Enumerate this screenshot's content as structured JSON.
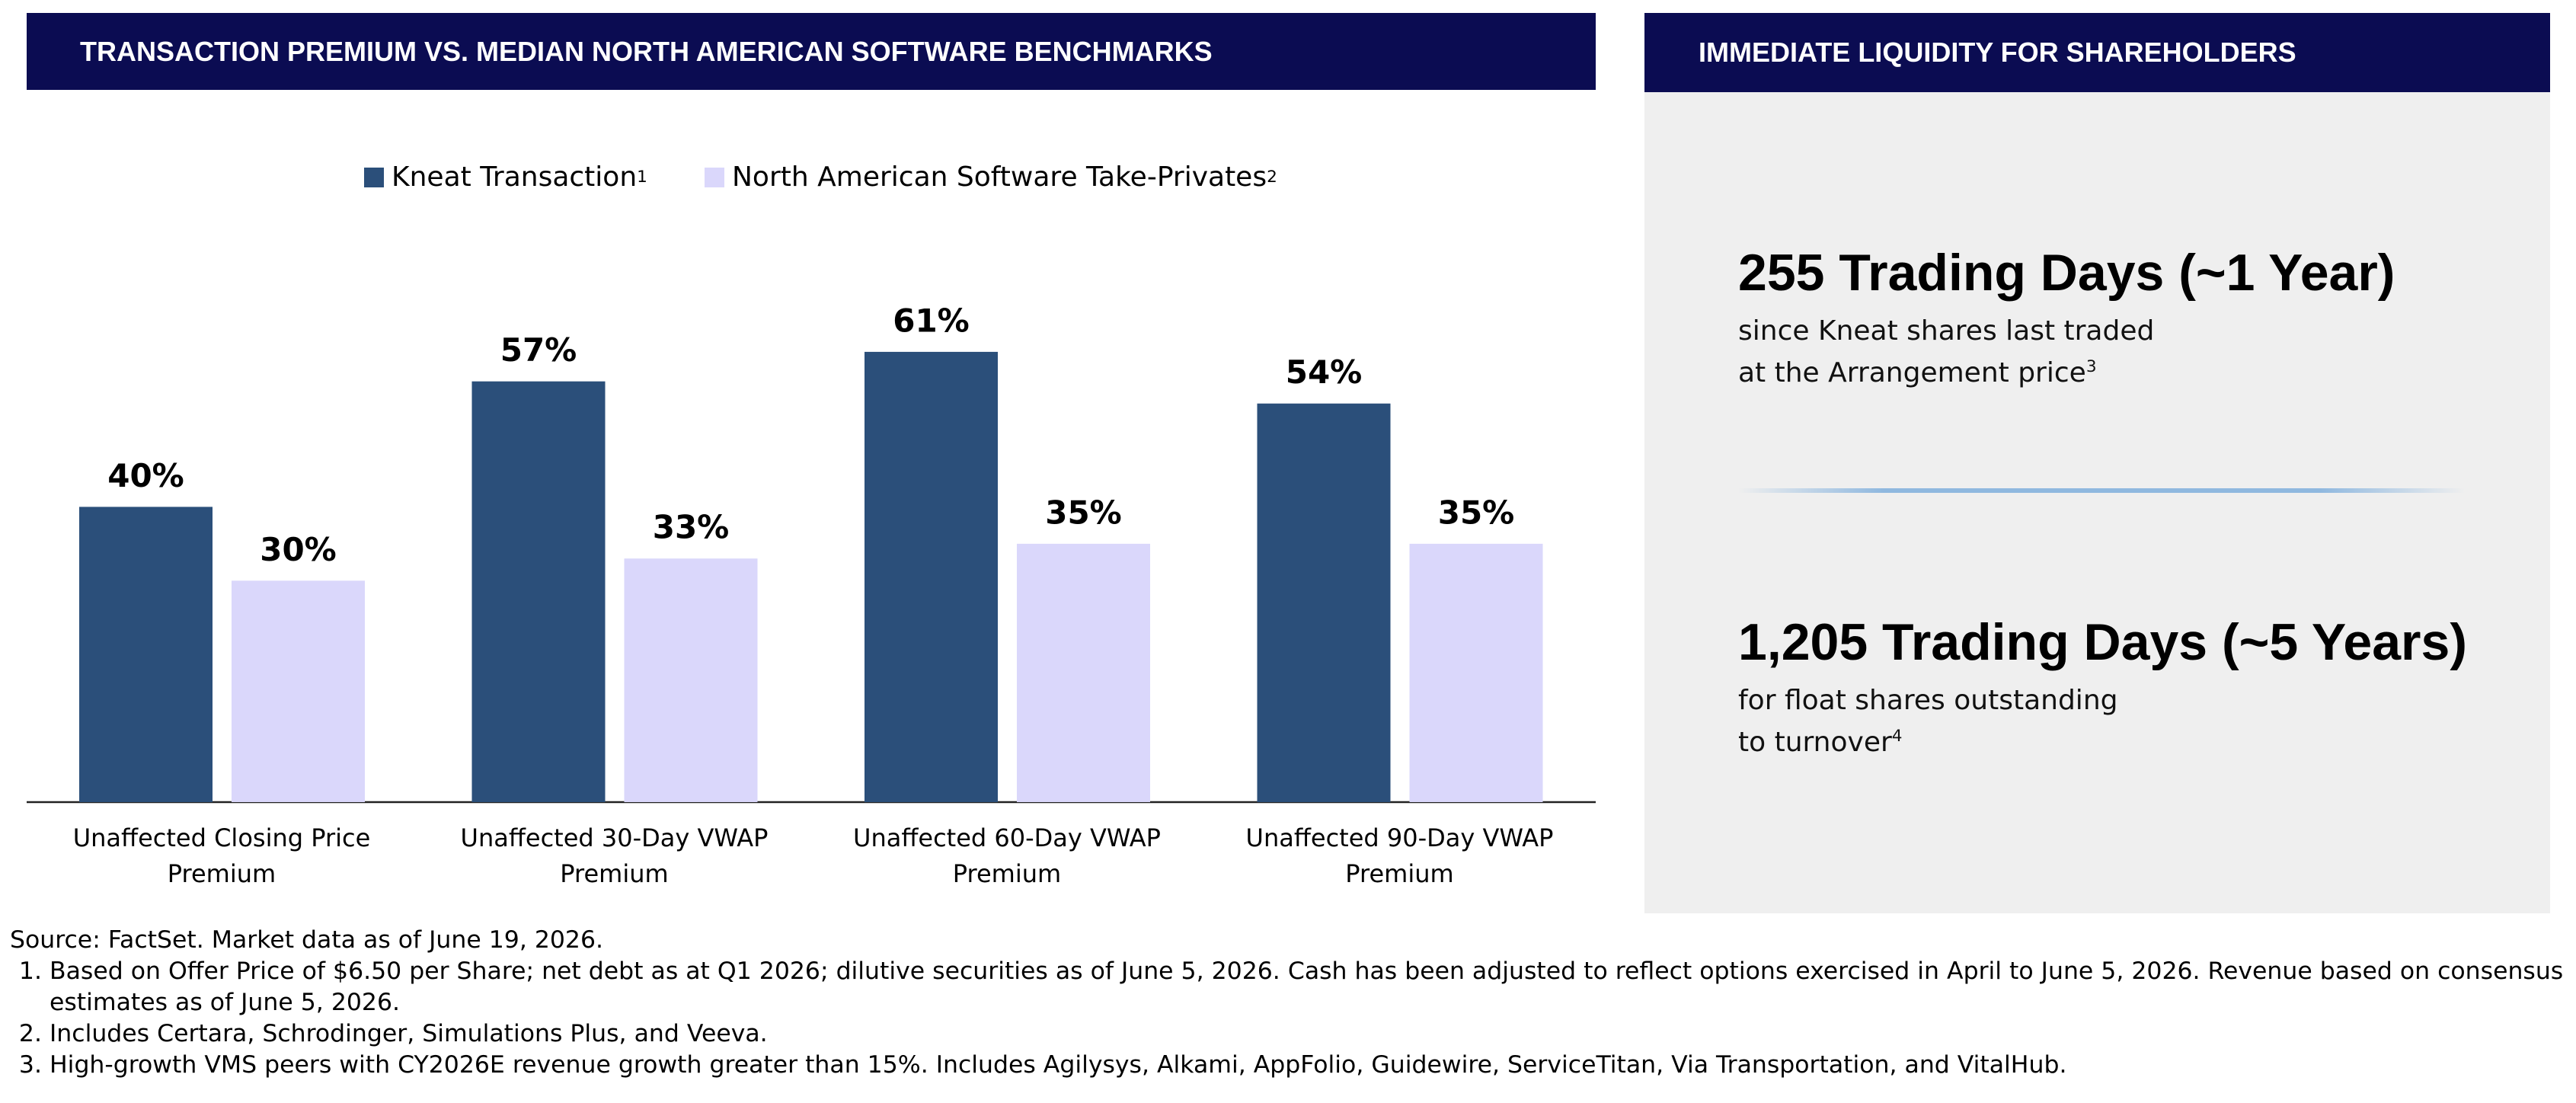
{
  "chart_data": {
    "type": "bar",
    "title": "TRANSACTION PREMIUM VS. MEDIAN NORTH AMERICAN SOFTWARE BENCHMARKS",
    "categories": [
      "Unaffected Closing Price Premium",
      "Unaffected 30-Day VWAP Premium",
      "Unaffected 60-Day VWAP Premium",
      "Unaffected 90-Day VWAP Premium"
    ],
    "series": [
      {
        "name": "Kneat Transaction",
        "note": "1",
        "color": "#2b4f7a",
        "values": [
          40,
          57,
          61,
          54
        ],
        "value_labels": [
          "40%",
          "57%",
          "61%",
          "54%"
        ]
      },
      {
        "name": "North American Software Take-Privates",
        "note": "2",
        "color": "#dad7fb",
        "values": [
          30,
          33,
          35,
          35
        ],
        "value_labels": [
          "30%",
          "33%",
          "35%",
          "35%"
        ]
      }
    ]
  },
  "liquidity": {
    "title": "IMMEDIATE LIQUIDITY FOR SHAREHOLDERS",
    "items": [
      {
        "headline": "255 Trading Days (~1 Year)",
        "lines": [
          "since Kneat shares last traded",
          "at the Arrangement price"
        ],
        "note": "3"
      },
      {
        "headline": "1,205 Trading Days (~5 Years)",
        "lines": [
          "for float shares outstanding",
          "to turnover"
        ],
        "note": "4"
      }
    ]
  },
  "footnotes": {
    "source": "Source: FactSet. Market data as of June 19, 2026.",
    "notes": [
      "Based on Offer Price of $6.50 per Share; net debt as at Q1 2026; dilutive securities as of June 5, 2026. Cash has been adjusted to reflect options exercised in April to June 5, 2026. Revenue based on consensus estimates as of June 5, 2026.",
      "Includes Certara, Schrodinger, Simulations Plus, and Veeva.",
      "High-growth VMS peers with CY2026E revenue growth greater than 15%. Includes Agilysys, Alkami, AppFolio, Guidewire, ServiceTitan, Via Transportation, and VitalHub."
    ]
  }
}
